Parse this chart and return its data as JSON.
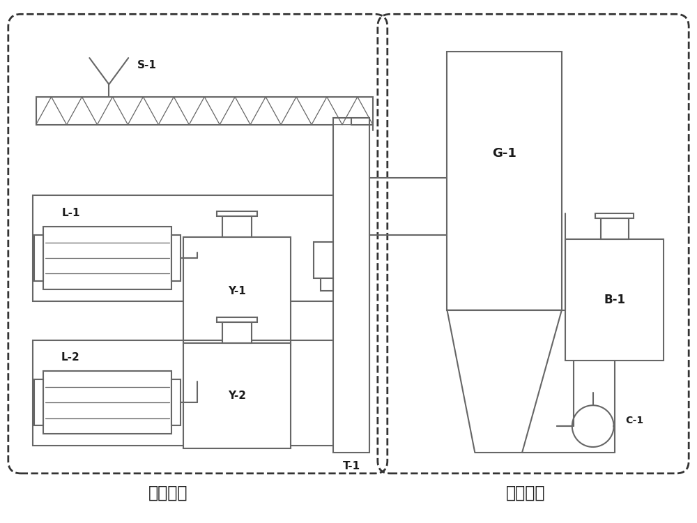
{
  "bg_color": "#ffffff",
  "line_color": "#666666",
  "text_color": "#1a1a1a",
  "fig_width": 10.0,
  "fig_height": 7.5,
  "labels": {
    "S1": "S-1",
    "L1": "L-1",
    "L2": "L-2",
    "Y1": "Y-1",
    "Y2": "Y-2",
    "G1": "G-1",
    "B1": "B-1",
    "C1": "C-1",
    "T1": "T-1",
    "sys1": "热解系统",
    "sys2": "再生系统"
  }
}
